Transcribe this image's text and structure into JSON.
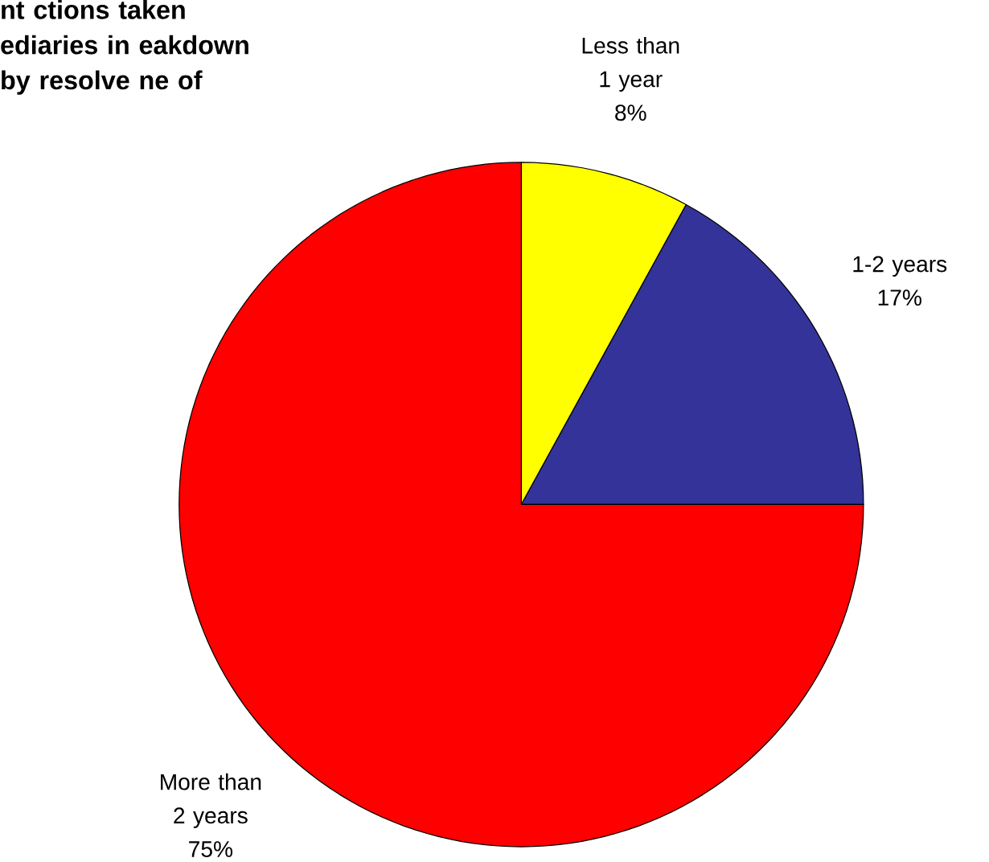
{
  "chart_data": {
    "type": "pie",
    "title": "nt ctions taken ediaries in eakdown by resolve ne of",
    "categories": [
      "Less than 1 year",
      "1-2 years",
      "More than 2 years"
    ],
    "values": [
      8,
      17,
      75
    ],
    "value_labels": [
      "8%",
      "17%",
      "75%"
    ],
    "colors": [
      "#ffff00",
      "#333399",
      "#ff0000"
    ],
    "legend": false
  }
}
